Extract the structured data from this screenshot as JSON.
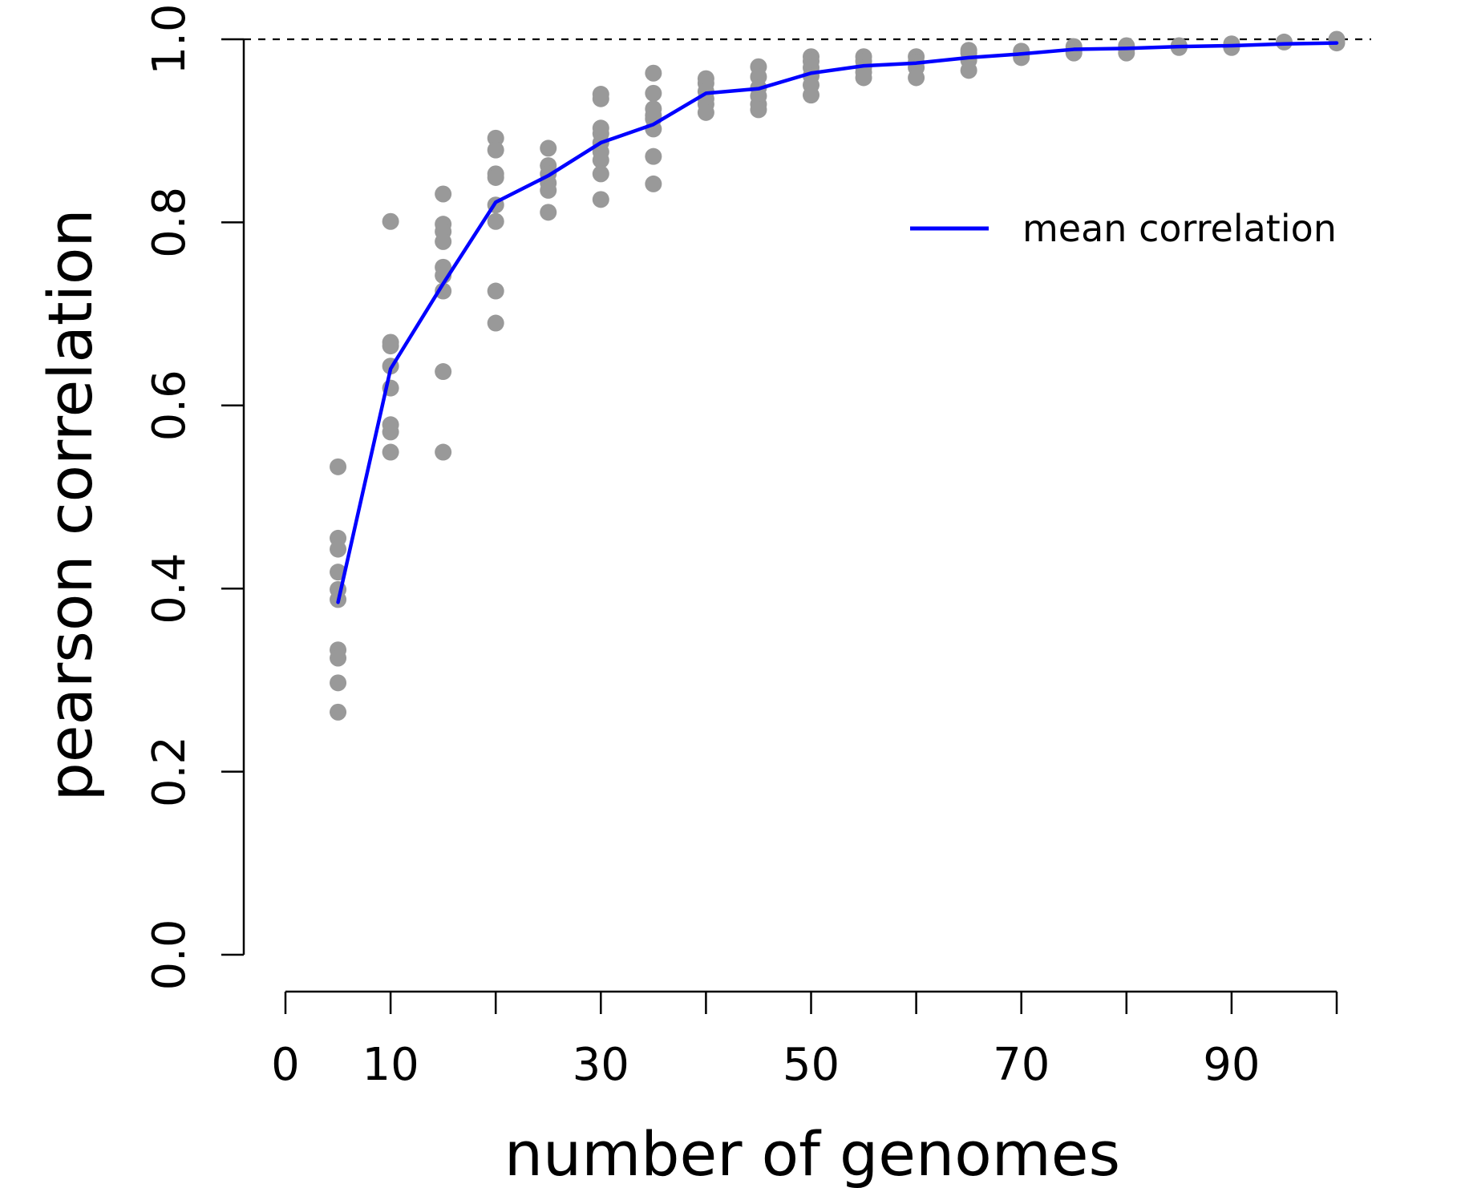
{
  "chart_data": {
    "type": "scatter",
    "xlabel": "number of genomes",
    "ylabel": "pearson correlation",
    "xlim": [
      0,
      100
    ],
    "ylim": [
      0,
      1
    ],
    "x_ticks": [
      0,
      10,
      20,
      30,
      40,
      50,
      60,
      70,
      80,
      90,
      100
    ],
    "x_tick_labels": [
      "0",
      "10",
      "",
      "30",
      "",
      "50",
      "",
      "70",
      "",
      "90",
      ""
    ],
    "y_ticks": [
      0,
      0.2,
      0.4,
      0.6,
      0.8,
      1.0
    ],
    "y_tick_labels": [
      "0.0",
      "0.2",
      "0.4",
      "0.6",
      "0.8",
      "1.0"
    ],
    "reference_line": {
      "y": 1.0,
      "style": "dashed"
    },
    "legend": {
      "position": "top-right",
      "entries": [
        "mean correlation"
      ]
    },
    "series": [
      {
        "kind": "points",
        "color": "#999999",
        "points": [
          [
            5,
            0.533
          ],
          [
            5,
            0.455
          ],
          [
            5,
            0.443
          ],
          [
            5,
            0.418
          ],
          [
            5,
            0.399
          ],
          [
            5,
            0.388
          ],
          [
            5,
            0.333
          ],
          [
            5,
            0.324
          ],
          [
            5,
            0.297
          ],
          [
            5,
            0.265
          ],
          [
            10,
            0.801
          ],
          [
            10,
            0.669
          ],
          [
            10,
            0.665
          ],
          [
            10,
            0.643
          ],
          [
            10,
            0.619
          ],
          [
            10,
            0.579
          ],
          [
            10,
            0.571
          ],
          [
            10,
            0.549
          ],
          [
            15,
            0.831
          ],
          [
            15,
            0.798
          ],
          [
            15,
            0.79
          ],
          [
            15,
            0.779
          ],
          [
            15,
            0.751
          ],
          [
            15,
            0.742
          ],
          [
            15,
            0.725
          ],
          [
            15,
            0.637
          ],
          [
            15,
            0.549
          ],
          [
            20,
            0.892
          ],
          [
            20,
            0.879
          ],
          [
            20,
            0.853
          ],
          [
            20,
            0.849
          ],
          [
            20,
            0.819
          ],
          [
            20,
            0.801
          ],
          [
            20,
            0.725
          ],
          [
            20,
            0.69
          ],
          [
            25,
            0.881
          ],
          [
            25,
            0.862
          ],
          [
            25,
            0.853
          ],
          [
            25,
            0.843
          ],
          [
            25,
            0.835
          ],
          [
            25,
            0.811
          ],
          [
            30,
            0.94
          ],
          [
            30,
            0.935
          ],
          [
            30,
            0.903
          ],
          [
            30,
            0.897
          ],
          [
            30,
            0.887
          ],
          [
            30,
            0.877
          ],
          [
            30,
            0.868
          ],
          [
            30,
            0.853
          ],
          [
            30,
            0.825
          ],
          [
            35,
            0.963
          ],
          [
            35,
            0.941
          ],
          [
            35,
            0.924
          ],
          [
            35,
            0.917
          ],
          [
            35,
            0.913
          ],
          [
            35,
            0.902
          ],
          [
            35,
            0.872
          ],
          [
            35,
            0.842
          ],
          [
            40,
            0.957
          ],
          [
            40,
            0.952
          ],
          [
            40,
            0.943
          ],
          [
            40,
            0.935
          ],
          [
            40,
            0.929
          ],
          [
            40,
            0.92
          ],
          [
            45,
            0.97
          ],
          [
            45,
            0.959
          ],
          [
            45,
            0.947
          ],
          [
            45,
            0.938
          ],
          [
            45,
            0.929
          ],
          [
            45,
            0.923
          ],
          [
            50,
            0.981
          ],
          [
            50,
            0.976
          ],
          [
            50,
            0.969
          ],
          [
            50,
            0.96
          ],
          [
            50,
            0.95
          ],
          [
            50,
            0.939
          ],
          [
            55,
            0.981
          ],
          [
            55,
            0.976
          ],
          [
            55,
            0.969
          ],
          [
            55,
            0.964
          ],
          [
            55,
            0.958
          ],
          [
            60,
            0.981
          ],
          [
            60,
            0.975
          ],
          [
            60,
            0.969
          ],
          [
            60,
            0.958
          ],
          [
            65,
            0.988
          ],
          [
            65,
            0.985
          ],
          [
            65,
            0.977
          ],
          [
            65,
            0.966
          ],
          [
            70,
            0.987
          ],
          [
            70,
            0.983
          ],
          [
            70,
            0.98
          ],
          [
            75,
            0.992
          ],
          [
            75,
            0.988
          ],
          [
            75,
            0.985
          ],
          [
            80,
            0.993
          ],
          [
            80,
            0.989
          ],
          [
            80,
            0.985
          ],
          [
            85,
            0.993
          ],
          [
            85,
            0.991
          ],
          [
            90,
            0.995
          ],
          [
            90,
            0.991
          ],
          [
            95,
            0.997
          ],
          [
            100,
            1.0
          ],
          [
            100,
            0.996
          ]
        ]
      },
      {
        "kind": "line",
        "name": "mean correlation",
        "color": "#0000ff",
        "x": [
          5,
          10,
          15,
          20,
          25,
          30,
          35,
          40,
          45,
          50,
          55,
          60,
          65,
          70,
          75,
          80,
          85,
          90,
          95,
          100
        ],
        "y": [
          0.385,
          0.64,
          0.733,
          0.822,
          0.851,
          0.887,
          0.907,
          0.941,
          0.946,
          0.963,
          0.971,
          0.974,
          0.98,
          0.984,
          0.989,
          0.99,
          0.992,
          0.993,
          0.995,
          0.996
        ]
      }
    ]
  }
}
